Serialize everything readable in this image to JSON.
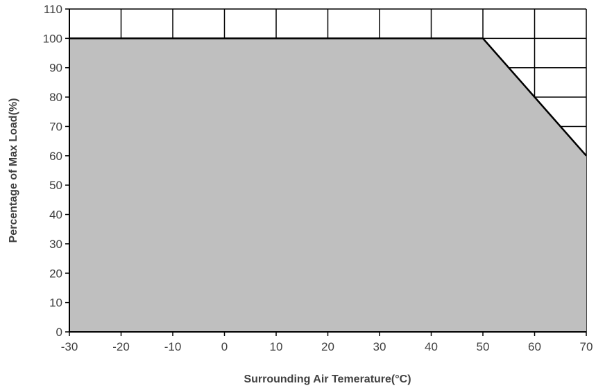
{
  "chart_data": {
    "type": "area",
    "title": "",
    "xlabel": "Surrounding  Air Temerature(°C)",
    "ylabel": "Percentage of Max Load(%)",
    "xlim": [
      -30,
      70
    ],
    "ylim": [
      0,
      110
    ],
    "xticks": [
      -30,
      -20,
      -10,
      0,
      10,
      20,
      30,
      40,
      50,
      60,
      70
    ],
    "yticks": [
      0,
      10,
      20,
      30,
      40,
      50,
      60,
      70,
      80,
      90,
      100,
      110
    ],
    "grid": true,
    "legend": "none",
    "series": [
      {
        "x": [
          -30,
          50,
          70
        ],
        "y": [
          100,
          100,
          60
        ]
      }
    ],
    "colors": {
      "fill": "#bfbfbf",
      "line": "#000000",
      "grid": "#000000",
      "text": "#404040",
      "background": "#ffffff"
    }
  }
}
